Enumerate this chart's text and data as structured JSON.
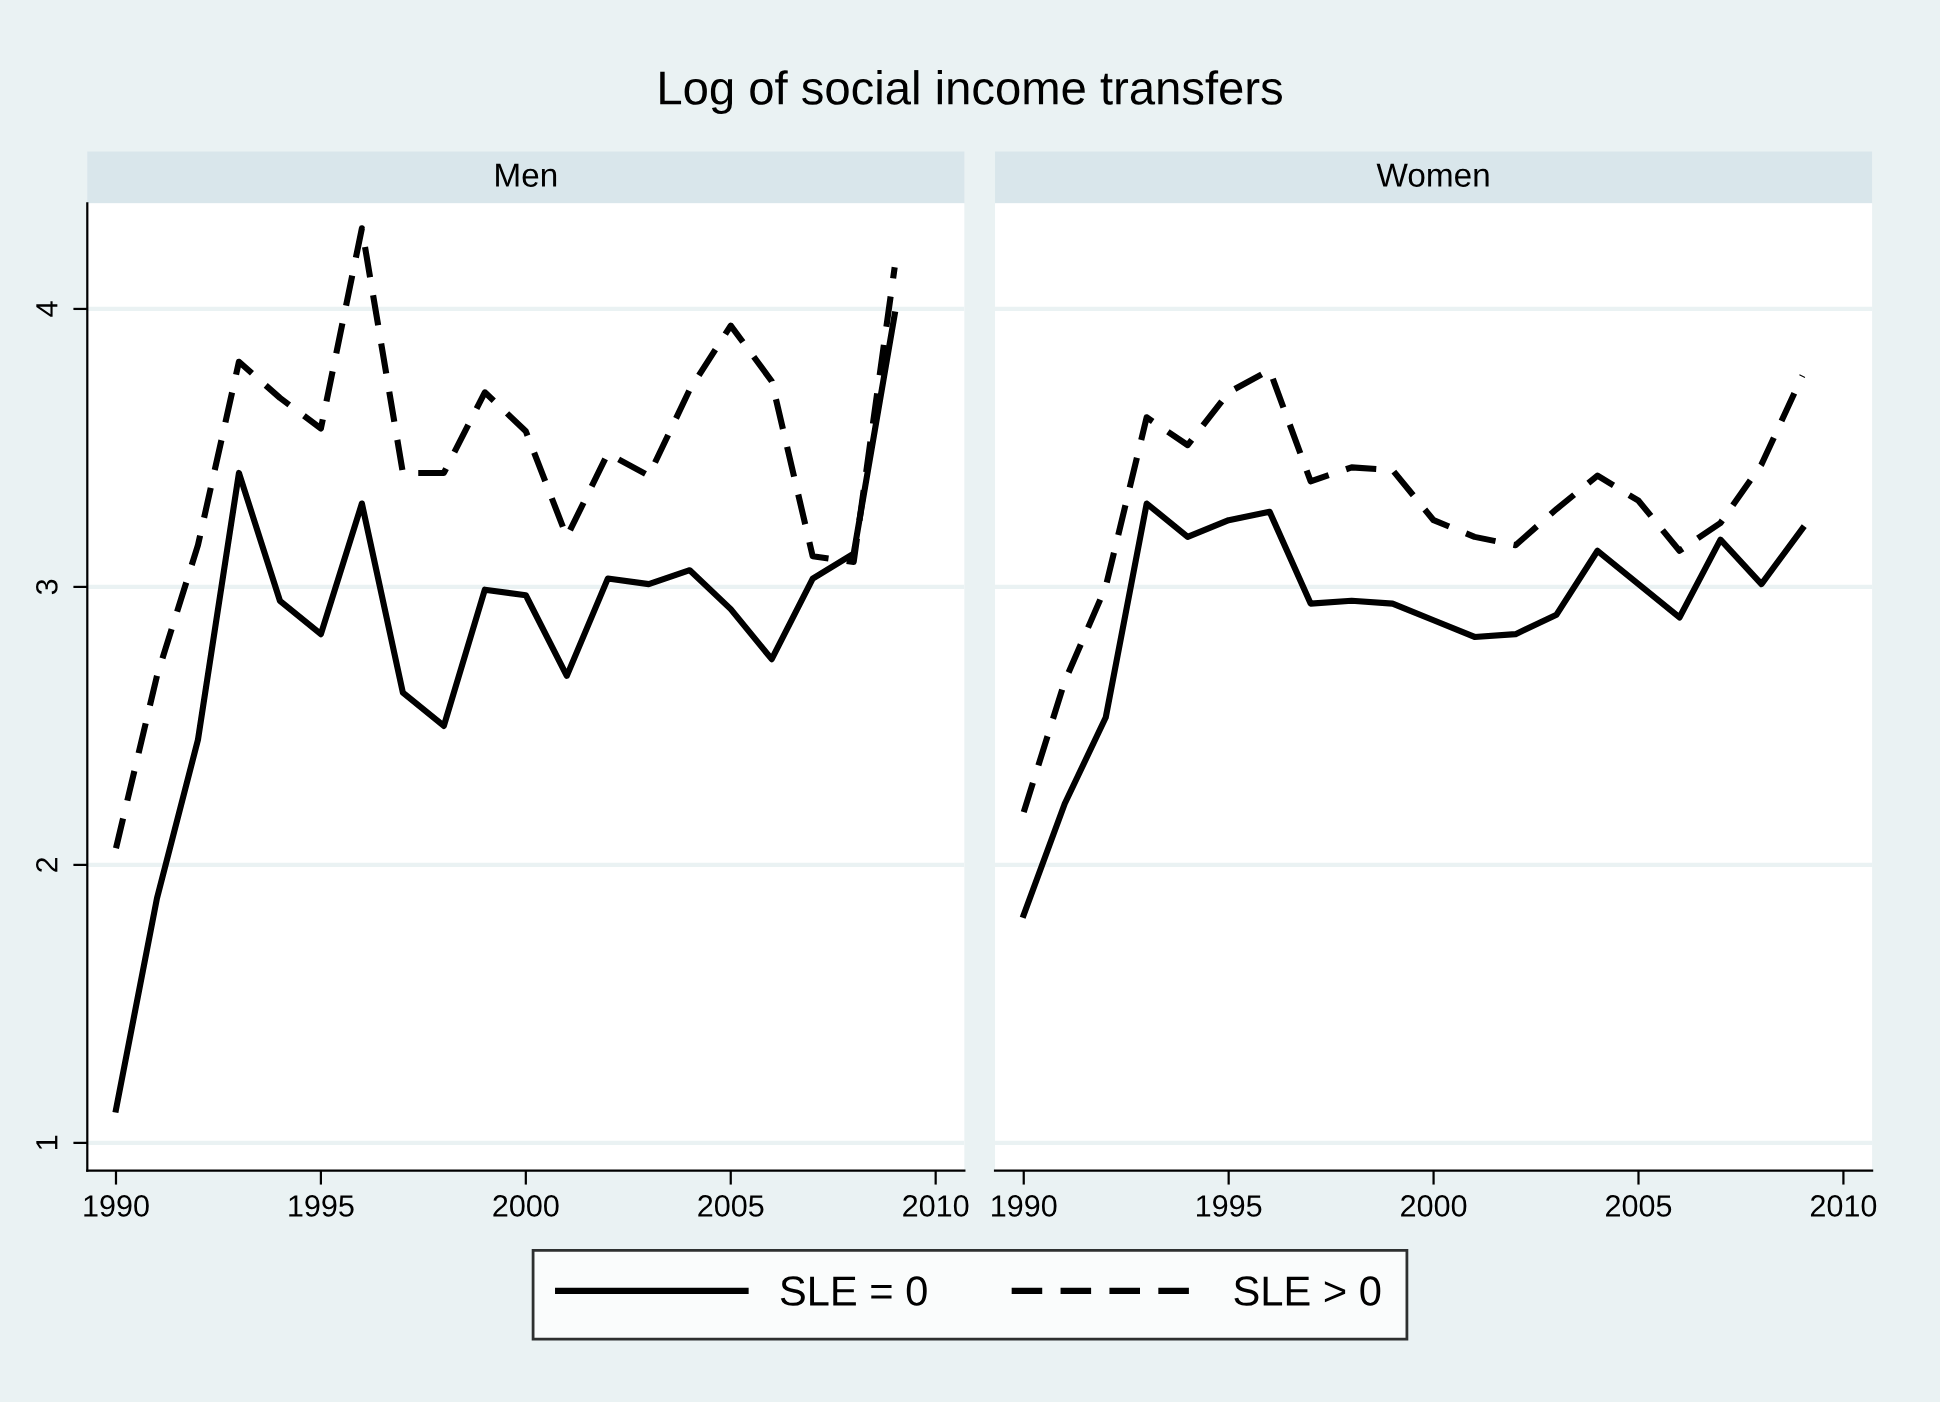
{
  "chart_data": [
    {
      "type": "line",
      "title": "Log of social income transfers",
      "subtitle": "Men",
      "legend": "bottom",
      "grid": "y",
      "x": [
        1990,
        1991,
        1992,
        1993,
        1994,
        1995,
        1996,
        1997,
        1998,
        1999,
        2000,
        2001,
        2002,
        2003,
        2004,
        2005,
        2006,
        2007,
        2008,
        2009
      ],
      "xlim": [
        1989.3,
        2010.7
      ],
      "xticks": [
        1990,
        1995,
        2000,
        2005,
        2010
      ],
      "ylim": [
        0.9,
        4.38
      ],
      "yticks": [
        1,
        2,
        3,
        4
      ],
      "series": [
        {
          "name": "SLE = 0",
          "color": "#000000",
          "line_style": "solid",
          "values": [
            1.12,
            1.88,
            2.45,
            3.41,
            2.95,
            2.83,
            3.3,
            2.62,
            2.5,
            2.99,
            2.97,
            2.68,
            3.03,
            3.01,
            3.06,
            2.92,
            2.74,
            3.03,
            3.12,
            3.98
          ]
        },
        {
          "name": "SLE > 0",
          "color": "#000000",
          "line_style": "dashed",
          "values": [
            2.06,
            2.68,
            3.15,
            3.81,
            3.68,
            3.57,
            4.29,
            3.41,
            3.41,
            3.7,
            3.56,
            3.18,
            3.48,
            3.4,
            3.71,
            3.94,
            3.74,
            3.11,
            3.09,
            4.15
          ]
        }
      ]
    },
    {
      "type": "line",
      "subtitle": "Women",
      "grid": "y",
      "tick_labels": "x",
      "x": [
        1990,
        1991,
        1992,
        1993,
        1994,
        1995,
        1996,
        1997,
        1998,
        1999,
        2000,
        2001,
        2002,
        2003,
        2004,
        2005,
        2006,
        2007,
        2008,
        2009
      ],
      "xlim": [
        1989.3,
        2010.7
      ],
      "xticks": [
        1990,
        1995,
        2000,
        2005,
        2010
      ],
      "ylim": [
        0.9,
        4.38
      ],
      "yticks": [
        1,
        2,
        3,
        4
      ],
      "series": [
        {
          "color": "#000000",
          "line_style": "solid",
          "values": [
            1.82,
            2.22,
            2.53,
            3.3,
            3.18,
            3.24,
            3.27,
            2.94,
            2.95,
            2.94,
            2.88,
            2.82,
            2.83,
            2.9,
            3.13,
            3.01,
            2.89,
            3.17,
            3.01,
            3.21
          ]
        },
        {
          "color": "#000000",
          "line_style": "dashed",
          "values": [
            2.19,
            2.66,
            3.0,
            3.61,
            3.51,
            3.7,
            3.78,
            3.38,
            3.43,
            3.42,
            3.24,
            3.18,
            3.15,
            3.28,
            3.4,
            3.31,
            3.13,
            3.23,
            3.44,
            3.76
          ]
        }
      ]
    }
  ]
}
